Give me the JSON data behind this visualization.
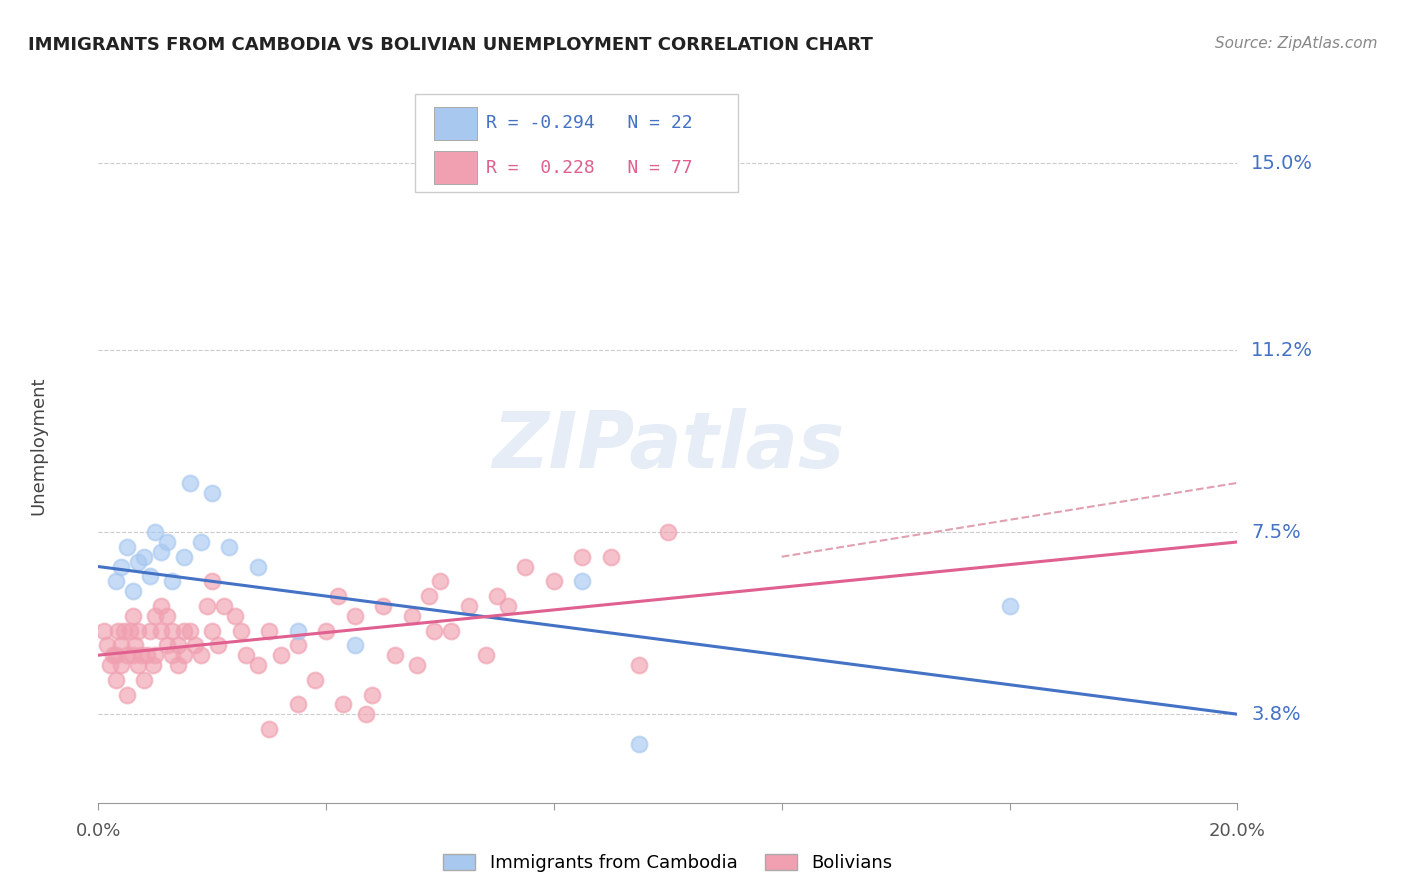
{
  "title": "IMMIGRANTS FROM CAMBODIA VS BOLIVIAN UNEMPLOYMENT CORRELATION CHART",
  "source": "Source: ZipAtlas.com",
  "ylabel": "Unemployment",
  "y_ticks": [
    3.8,
    7.5,
    11.2,
    15.0
  ],
  "y_tick_labels": [
    "3.8%",
    "7.5%",
    "11.2%",
    "15.0%"
  ],
  "x_min": 0.0,
  "x_max": 20.0,
  "y_min": 2.0,
  "y_max": 16.5,
  "legend_r1": "R = -0.294",
  "legend_n1": "N = 22",
  "legend_r2": "R =  0.228",
  "legend_n2": "N = 77",
  "color_blue": "#a8c8f0",
  "color_pink": "#f0a0b0",
  "legend_label1": "Immigrants from Cambodia",
  "legend_label2": "Bolivians",
  "cambodia_x": [
    0.3,
    0.4,
    0.5,
    0.6,
    0.7,
    0.8,
    0.9,
    1.0,
    1.1,
    1.2,
    1.3,
    1.5,
    1.6,
    1.8,
    2.0,
    2.3,
    2.8,
    3.5,
    4.5,
    8.5,
    9.5,
    16.0
  ],
  "cambodia_y": [
    6.5,
    6.8,
    7.2,
    6.3,
    6.9,
    7.0,
    6.6,
    7.5,
    7.1,
    7.3,
    6.5,
    7.0,
    8.5,
    7.3,
    8.3,
    7.2,
    6.8,
    5.5,
    5.2,
    6.5,
    3.2,
    6.0
  ],
  "bolivia_x": [
    0.1,
    0.15,
    0.2,
    0.25,
    0.3,
    0.3,
    0.35,
    0.4,
    0.4,
    0.45,
    0.5,
    0.5,
    0.55,
    0.6,
    0.6,
    0.65,
    0.7,
    0.7,
    0.75,
    0.8,
    0.85,
    0.9,
    0.95,
    1.0,
    1.0,
    1.1,
    1.1,
    1.2,
    1.2,
    1.3,
    1.3,
    1.4,
    1.4,
    1.5,
    1.5,
    1.6,
    1.7,
    1.8,
    1.9,
    2.0,
    2.0,
    2.1,
    2.2,
    2.4,
    2.5,
    2.6,
    2.8,
    3.0,
    3.2,
    3.5,
    3.8,
    4.0,
    4.2,
    4.5,
    5.0,
    5.5,
    6.0,
    6.5,
    7.0,
    7.5,
    8.0,
    9.0,
    10.0,
    9.5,
    4.8,
    5.2,
    4.7,
    5.8,
    3.0,
    3.5,
    6.2,
    8.5,
    6.8,
    7.2,
    5.6,
    5.9,
    4.3
  ],
  "bolivia_y": [
    5.5,
    5.2,
    4.8,
    5.0,
    4.5,
    5.0,
    5.5,
    4.8,
    5.2,
    5.5,
    4.2,
    5.0,
    5.5,
    5.0,
    5.8,
    5.2,
    4.8,
    5.5,
    5.0,
    4.5,
    5.0,
    5.5,
    4.8,
    5.0,
    5.8,
    5.5,
    6.0,
    5.2,
    5.8,
    5.0,
    5.5,
    5.2,
    4.8,
    5.5,
    5.0,
    5.5,
    5.2,
    5.0,
    6.0,
    5.5,
    6.5,
    5.2,
    6.0,
    5.8,
    5.5,
    5.0,
    4.8,
    5.5,
    5.0,
    5.2,
    4.5,
    5.5,
    6.2,
    5.8,
    6.0,
    5.8,
    6.5,
    6.0,
    6.2,
    6.8,
    6.5,
    7.0,
    7.5,
    4.8,
    4.2,
    5.0,
    3.8,
    6.2,
    3.5,
    4.0,
    5.5,
    7.0,
    5.0,
    6.0,
    4.8,
    5.5,
    4.0
  ],
  "blue_line_x0": 0.0,
  "blue_line_x1": 20.0,
  "blue_line_y0": 6.8,
  "blue_line_y1": 3.8,
  "pink_line_x0": 0.0,
  "pink_line_x1": 20.0,
  "pink_line_y0": 5.0,
  "pink_line_y1": 7.3,
  "pink_dash_x0": 12.0,
  "pink_dash_x1": 20.0,
  "pink_dash_y0": 7.0,
  "pink_dash_y1": 8.5,
  "blue_line_color": "#4472c4",
  "pink_line_color": "#e06090",
  "pink_dash_color": "#e0a0b0"
}
